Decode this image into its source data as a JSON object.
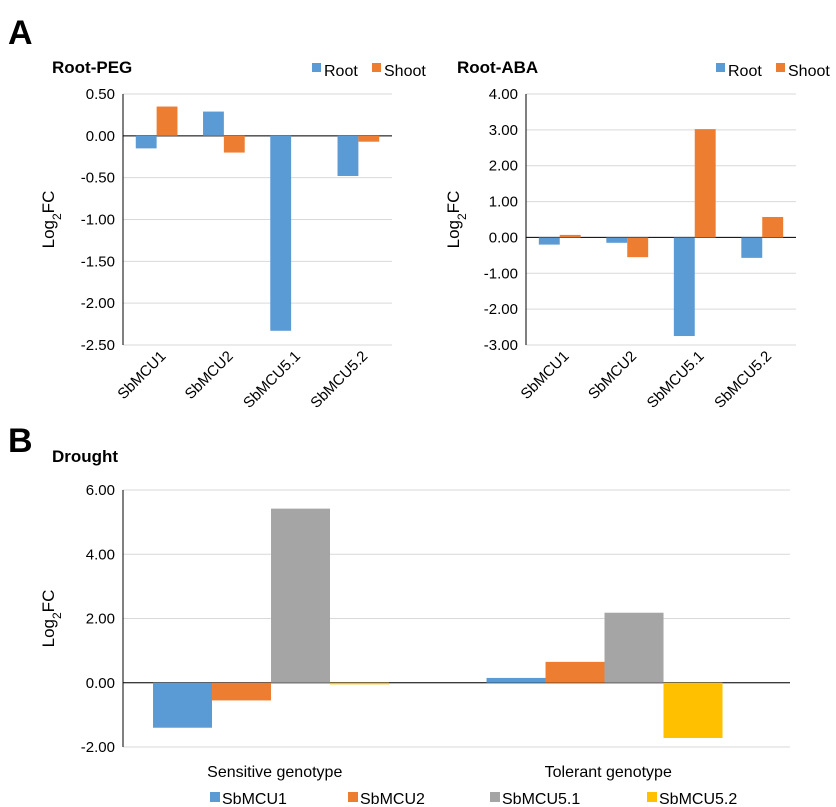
{
  "panels": {
    "a_label": "A",
    "b_label": "B"
  },
  "colors": {
    "root": "#5b9bd5",
    "shoot": "#ed7d31",
    "sbmcu1": "#5b9bd5",
    "sbmcu2": "#ed7d31",
    "sbmcu51": "#a5a5a5",
    "sbmcu52": "#ffc000"
  },
  "chart_data": [
    {
      "type": "bar",
      "title": "Root-PEG",
      "ylabel_main": "Log",
      "ylabel_sub": "2",
      "ylabel_tail": "FC",
      "categories": [
        "SbMCU1",
        "SbMCU2",
        "SbMCU5.1",
        "SbMCU5.2"
      ],
      "ylim": [
        -2.5,
        0.5
      ],
      "yticks": [
        0.5,
        0.0,
        -0.5,
        -1.0,
        -1.5,
        -2.0,
        -2.5
      ],
      "ytick_labels": [
        "0.50",
        "0.00",
        "-0.50",
        "-1.00",
        "-1.50",
        "-2.00",
        "-2.50"
      ],
      "grid": true,
      "legend_position": "top-right",
      "series": [
        {
          "name": "Root",
          "values": [
            -0.15,
            0.29,
            -2.33,
            -0.48
          ]
        },
        {
          "name": "Shoot",
          "values": [
            0.35,
            -0.2,
            0.0,
            -0.07
          ]
        }
      ]
    },
    {
      "type": "bar",
      "title": "Root-ABA",
      "ylabel_main": "Log",
      "ylabel_sub": "2",
      "ylabel_tail": "FC",
      "categories": [
        "SbMCU1",
        "SbMCU2",
        "SbMCU5.1",
        "SbMCU5.2"
      ],
      "ylim": [
        -3.0,
        4.0
      ],
      "yticks": [
        4.0,
        3.0,
        2.0,
        1.0,
        0.0,
        -1.0,
        -2.0,
        -3.0
      ],
      "ytick_labels": [
        "4.00",
        "3.00",
        "2.00",
        "1.00",
        "0.00",
        "-1.00",
        "-2.00",
        "-3.00"
      ],
      "grid": true,
      "legend_position": "top-right",
      "series": [
        {
          "name": "Root",
          "values": [
            -0.2,
            -0.15,
            -2.75,
            -0.57
          ]
        },
        {
          "name": "Shoot",
          "values": [
            0.07,
            -0.55,
            3.02,
            0.57
          ]
        }
      ]
    },
    {
      "type": "bar",
      "title": "Drought",
      "ylabel_main": "Log",
      "ylabel_sub": "2",
      "ylabel_tail": "FC",
      "categories": [
        "Sensitive genotype",
        "Tolerant genotype"
      ],
      "ylim": [
        -2.0,
        6.0
      ],
      "yticks": [
        6.0,
        4.0,
        2.0,
        0.0,
        -2.0
      ],
      "ytick_labels": [
        "6.00",
        "4.00",
        "2.00",
        "0.00",
        "-2.00"
      ],
      "grid": true,
      "legend_position": "bottom",
      "series": [
        {
          "name": "SbMCU1",
          "values": [
            -1.4,
            0.15
          ]
        },
        {
          "name": "SbMCU2",
          "values": [
            -0.55,
            0.65
          ]
        },
        {
          "name": "SbMCU5.1",
          "values": [
            5.42,
            2.18
          ]
        },
        {
          "name": "SbMCU5.2",
          "values": [
            -0.05,
            -1.72
          ]
        }
      ]
    }
  ]
}
